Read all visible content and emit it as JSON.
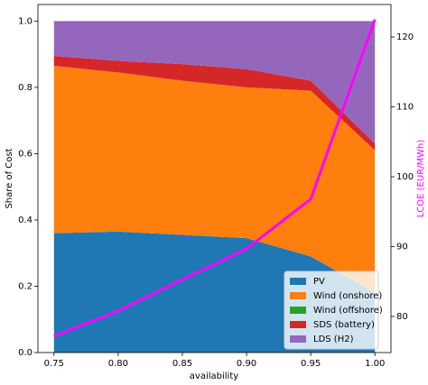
{
  "chart_data": {
    "type": "stackplot",
    "x_label": "availability",
    "y_label": "Share of Cost",
    "y2_label": "LCOE (EUR/MWh)",
    "x": [
      0.75,
      0.8,
      0.85,
      0.9,
      0.95,
      1.0
    ],
    "series": [
      {
        "name": "PV",
        "color": "#1f77b4",
        "values": [
          0.36,
          0.365,
          0.355,
          0.345,
          0.29,
          0.18
        ]
      },
      {
        "name": "Wind (onshore)",
        "color": "#ff7f0e",
        "values": [
          0.505,
          0.48,
          0.465,
          0.455,
          0.5,
          0.43
        ]
      },
      {
        "name": "Wind (offshore)",
        "color": "#2ca02c",
        "values": [
          0,
          0,
          0,
          0,
          0,
          0
        ]
      },
      {
        "name": "SDS (battery)",
        "color": "#d62728",
        "values": [
          0.03,
          0.035,
          0.05,
          0.055,
          0.03,
          0.02
        ]
      },
      {
        "name": "LDS (H2)",
        "color": "#9467bd",
        "values": [
          0.105,
          0.12,
          0.13,
          0.145,
          0.18,
          0.37
        ]
      }
    ],
    "line": {
      "name": "LCOE",
      "color": "#ff00ff",
      "axis": "y2",
      "values": [
        77.2,
        80.8,
        85.3,
        89.7,
        96.8,
        122.5
      ]
    },
    "xlim": [
      0.7375,
      1.0125
    ],
    "xticks": [
      0.75,
      {
        "value": 0.8,
        "label": "0.80"
      },
      0.85,
      {
        "value": 0.9,
        "label": "0.90"
      },
      0.95,
      {
        "value": 1.0,
        "label": "1.00"
      }
    ],
    "ylim": [
      0,
      1.05
    ],
    "yticks": [
      {
        "value": 0,
        "label": "0.0"
      },
      0.2,
      0.4,
      0.6,
      0.8,
      {
        "value": 1.0,
        "label": "1.0"
      }
    ],
    "y2lim": [
      74.84,
      124.65
    ],
    "y2ticks": [
      80,
      90,
      100,
      110,
      120
    ],
    "legend": "lower right"
  }
}
